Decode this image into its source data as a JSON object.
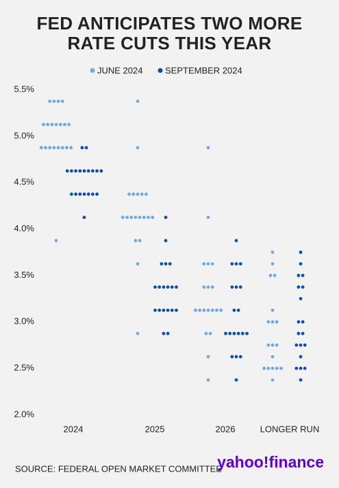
{
  "chart_data": {
    "type": "dot",
    "title": "FED ANTICIPATES TWO MORE RATE CUTS THIS YEAR",
    "categories": [
      "2024",
      "2025",
      "2026",
      "LONGER RUN"
    ],
    "series": [
      {
        "name": "JUNE 2024",
        "color": "#6fa8e4",
        "values": [
          [
            5.375,
            5.375,
            5.375,
            5.375,
            5.125,
            5.125,
            5.125,
            5.125,
            5.125,
            5.125,
            5.125,
            4.875,
            4.875,
            4.875,
            4.875,
            4.875,
            4.875,
            4.875,
            4.875,
            3.875
          ],
          [
            5.375,
            4.875,
            4.375,
            4.375,
            4.375,
            4.375,
            4.375,
            4.125,
            4.125,
            4.125,
            4.125,
            4.125,
            4.125,
            4.125,
            4.125,
            3.875,
            3.875,
            3.625,
            2.875
          ],
          [
            4.875,
            4.125,
            3.625,
            3.625,
            3.625,
            3.375,
            3.375,
            3.375,
            3.125,
            3.125,
            3.125,
            3.125,
            3.125,
            3.125,
            3.125,
            2.875,
            2.875,
            2.625,
            2.375
          ],
          [
            3.75,
            3.625,
            3.5,
            3.5,
            3.125,
            3.0,
            3.0,
            3.0,
            2.75,
            2.75,
            2.75,
            2.625,
            2.5,
            2.5,
            2.5,
            2.5,
            2.5,
            2.375
          ]
        ]
      },
      {
        "name": "SEPTEMBER 2024",
        "color": "#0a4fb0",
        "values": [
          [
            4.875,
            4.875,
            4.625,
            4.625,
            4.625,
            4.625,
            4.625,
            4.625,
            4.625,
            4.625,
            4.625,
            4.375,
            4.375,
            4.375,
            4.375,
            4.375,
            4.375,
            4.375,
            4.125
          ],
          [
            4.125,
            3.875,
            3.625,
            3.625,
            3.625,
            3.375,
            3.375,
            3.375,
            3.375,
            3.375,
            3.375,
            3.125,
            3.125,
            3.125,
            3.125,
            3.125,
            3.125,
            2.875,
            2.875
          ],
          [
            3.875,
            3.625,
            3.625,
            3.625,
            3.375,
            3.375,
            3.375,
            3.125,
            3.125,
            2.875,
            2.875,
            2.875,
            2.875,
            2.875,
            2.875,
            2.625,
            2.625,
            2.625,
            2.375
          ],
          [
            3.75,
            3.625,
            3.5,
            3.5,
            3.375,
            3.375,
            3.25,
            3.0,
            3.0,
            2.875,
            2.875,
            2.75,
            2.75,
            2.75,
            2.625,
            2.5,
            2.5,
            2.5,
            2.375
          ]
        ]
      }
    ],
    "ylim": [
      2.0,
      5.5
    ],
    "yticks": [
      {
        "value": 2.0,
        "label": "2.0%"
      },
      {
        "value": 2.5,
        "label": "2.5%"
      },
      {
        "value": 3.0,
        "label": "3.0%"
      },
      {
        "value": 3.5,
        "label": "3.5%"
      },
      {
        "value": 4.0,
        "label": "4.0%"
      },
      {
        "value": 4.5,
        "label": "4.5%"
      },
      {
        "value": 5.0,
        "label": "5.0%"
      },
      {
        "value": 5.5,
        "label": "5.5%"
      }
    ],
    "source": "SOURCE: FEDERAL OPEN MARKET COMMITTEE",
    "logo": "yahoo!finance"
  }
}
